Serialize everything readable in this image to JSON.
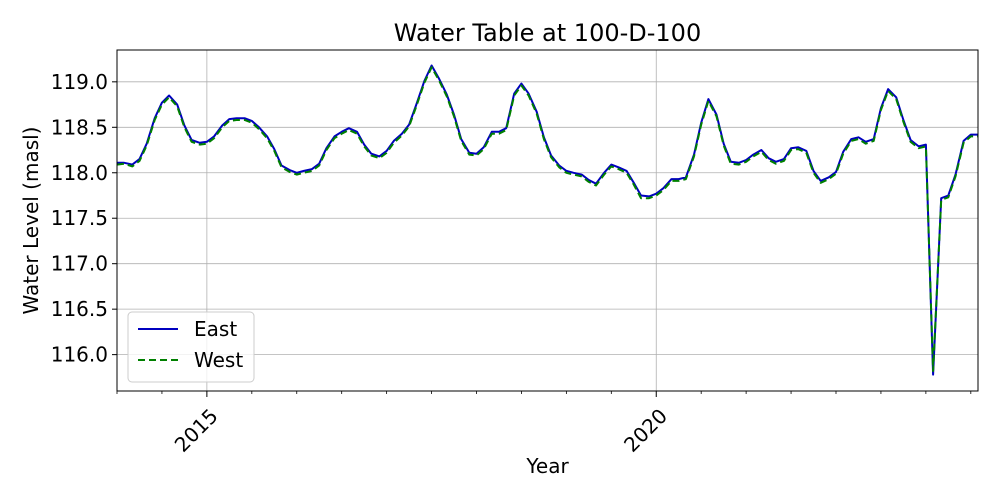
{
  "chart_data": {
    "type": "line",
    "title": "Water Table at 100-D-100",
    "xlabel": "Year",
    "ylabel": "Water Level (masl)",
    "x_unit": "decimal year",
    "xlim": [
      2014,
      2023.58
    ],
    "ylim": [
      115.6,
      119.35
    ],
    "x_ticks": [
      {
        "value": 2015,
        "label": "2015"
      },
      {
        "value": 2020,
        "label": "2020"
      }
    ],
    "x_minor_ticks": [
      2014,
      2014.5,
      2015.5,
      2016,
      2016.5,
      2017,
      2017.5,
      2018,
      2018.5,
      2019,
      2019.5,
      2020.5,
      2021,
      2021.5,
      2022,
      2022.5,
      2023,
      2023.5
    ],
    "y_ticks": [
      {
        "value": 116.0,
        "label": "116.0"
      },
      {
        "value": 116.5,
        "label": "116.5"
      },
      {
        "value": 117.0,
        "label": "117.0"
      },
      {
        "value": 117.5,
        "label": "117.5"
      },
      {
        "value": 118.0,
        "label": "118.0"
      },
      {
        "value": 118.5,
        "label": "118.5"
      },
      {
        "value": 119.0,
        "label": "119.0"
      }
    ],
    "grid": true,
    "legend_position": "lower-left",
    "x": [
      2014.0,
      2014.08,
      2014.17,
      2014.25,
      2014.33,
      2014.42,
      2014.5,
      2014.58,
      2014.67,
      2014.75,
      2014.83,
      2014.92,
      2015.0,
      2015.08,
      2015.17,
      2015.25,
      2015.33,
      2015.42,
      2015.5,
      2015.58,
      2015.67,
      2015.75,
      2015.83,
      2015.92,
      2016.0,
      2016.08,
      2016.17,
      2016.25,
      2016.33,
      2016.42,
      2016.5,
      2016.58,
      2016.67,
      2016.75,
      2016.83,
      2016.92,
      2017.0,
      2017.08,
      2017.17,
      2017.25,
      2017.33,
      2017.42,
      2017.5,
      2017.58,
      2017.67,
      2017.75,
      2017.83,
      2017.92,
      2018.0,
      2018.08,
      2018.17,
      2018.25,
      2018.33,
      2018.42,
      2018.5,
      2018.58,
      2018.67,
      2018.75,
      2018.83,
      2018.92,
      2019.0,
      2019.08,
      2019.17,
      2019.25,
      2019.33,
      2019.42,
      2019.5,
      2019.58,
      2019.67,
      2019.75,
      2019.83,
      2019.92,
      2020.0,
      2020.08,
      2020.17,
      2020.25,
      2020.33,
      2020.42,
      2020.5,
      2020.58,
      2020.67,
      2020.75,
      2020.83,
      2020.92,
      2021.0,
      2021.08,
      2021.17,
      2021.25,
      2021.33,
      2021.42,
      2021.5,
      2021.58,
      2021.67,
      2021.75,
      2021.83,
      2021.92,
      2022.0,
      2022.08,
      2022.17,
      2022.25,
      2022.33,
      2022.42,
      2022.5,
      2022.58,
      2022.67,
      2022.75,
      2022.83,
      2022.92,
      2023.0,
      2023.08,
      2023.17,
      2023.25,
      2023.33,
      2023.42,
      2023.5,
      2023.58
    ],
    "series": [
      {
        "name": "East",
        "color": "#0000bf",
        "style": "solid",
        "values": [
          118.11,
          118.11,
          118.09,
          118.15,
          118.32,
          118.6,
          118.77,
          118.85,
          118.75,
          118.52,
          118.36,
          118.33,
          118.34,
          118.4,
          118.52,
          118.59,
          118.6,
          118.6,
          118.57,
          118.5,
          118.4,
          118.26,
          118.08,
          118.03,
          118.0,
          118.02,
          118.04,
          118.1,
          118.27,
          118.4,
          118.45,
          118.49,
          118.45,
          118.31,
          118.21,
          118.18,
          118.24,
          118.35,
          118.43,
          118.53,
          118.75,
          119.01,
          119.18,
          119.04,
          118.86,
          118.64,
          118.37,
          118.22,
          118.21,
          118.28,
          118.45,
          118.45,
          118.49,
          118.87,
          118.98,
          118.87,
          118.67,
          118.39,
          118.19,
          118.08,
          118.02,
          118.0,
          117.98,
          117.92,
          117.88,
          118.0,
          118.09,
          118.06,
          118.02,
          117.89,
          117.75,
          117.74,
          117.77,
          117.83,
          117.93,
          117.93,
          117.95,
          118.2,
          118.55,
          118.81,
          118.64,
          118.32,
          118.12,
          118.11,
          118.14,
          118.2,
          118.25,
          118.16,
          118.12,
          118.15,
          118.27,
          118.28,
          118.24,
          118.02,
          117.91,
          117.95,
          118.01,
          118.23,
          118.37,
          118.39,
          118.34,
          118.37,
          118.71,
          118.92,
          118.83,
          118.58,
          118.36,
          118.29,
          118.31,
          115.78,
          117.72,
          117.75,
          117.98,
          118.35,
          118.42,
          118.42
        ]
      },
      {
        "name": "West",
        "color": "#008000",
        "style": "dashed",
        "values": [
          118.09,
          118.1,
          118.07,
          118.13,
          118.3,
          118.58,
          118.75,
          118.83,
          118.73,
          118.5,
          118.34,
          118.31,
          118.32,
          118.38,
          118.5,
          118.57,
          118.58,
          118.58,
          118.55,
          118.48,
          118.38,
          118.24,
          118.06,
          118.01,
          117.98,
          118.0,
          118.02,
          118.08,
          118.25,
          118.38,
          118.43,
          118.47,
          118.43,
          118.29,
          118.19,
          118.16,
          118.22,
          118.33,
          118.41,
          118.51,
          118.73,
          118.99,
          119.16,
          119.02,
          118.84,
          118.62,
          118.35,
          118.2,
          118.19,
          118.26,
          118.43,
          118.43,
          118.47,
          118.85,
          118.96,
          118.85,
          118.65,
          118.37,
          118.17,
          118.06,
          118.0,
          117.98,
          117.96,
          117.9,
          117.86,
          117.98,
          118.07,
          118.04,
          118.0,
          117.87,
          117.72,
          117.72,
          117.75,
          117.81,
          117.91,
          117.91,
          117.93,
          118.18,
          118.53,
          118.79,
          118.62,
          118.3,
          118.1,
          118.09,
          118.12,
          118.18,
          118.23,
          118.14,
          118.1,
          118.13,
          118.25,
          118.26,
          118.22,
          118.0,
          117.89,
          117.93,
          117.99,
          118.21,
          118.35,
          118.37,
          118.32,
          118.35,
          118.69,
          118.9,
          118.81,
          118.56,
          118.34,
          118.27,
          118.29,
          115.82,
          117.7,
          117.73,
          117.96,
          118.33,
          118.4,
          118.4
        ]
      }
    ]
  }
}
